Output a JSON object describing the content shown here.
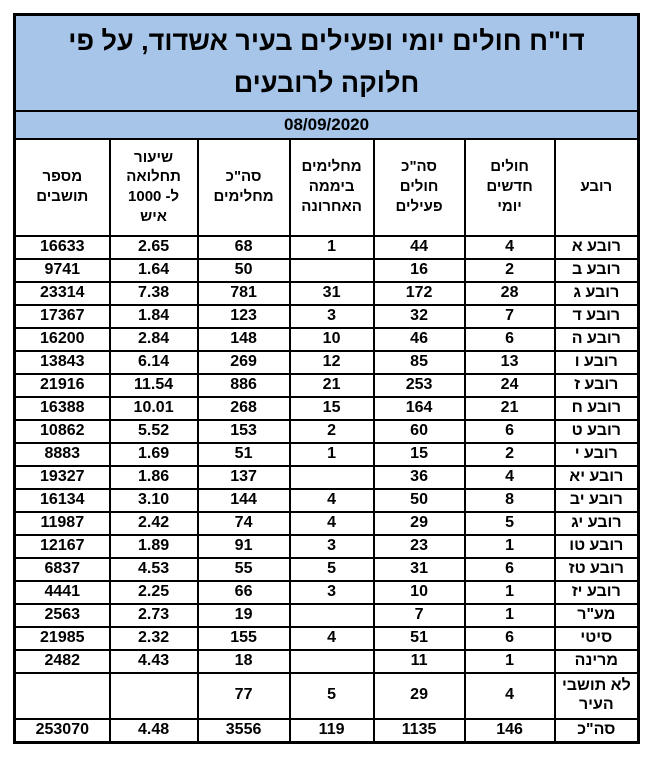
{
  "report": {
    "title": "דו\"ח חולים יומי ופעילים בעיר אשדוד,  על פי\nחלוקה לרובעים",
    "date": "08/09/2020"
  },
  "colors": {
    "header_bg": "#a6c5e8",
    "border": "#000000",
    "row_bg": "#ffffff",
    "text": "#000000"
  },
  "table": {
    "columns": [
      {
        "key": "quarter",
        "label": "רובע"
      },
      {
        "key": "new_daily",
        "label": "חולים\nחדשים\nיומי"
      },
      {
        "key": "active_total",
        "label": "סה\"כ\nחולים\nפעילים"
      },
      {
        "key": "recovered_last_day",
        "label": "מחלימים\nביממה\nהאחרונה"
      },
      {
        "key": "recovered_total",
        "label": "סה\"כ\nמחלימים"
      },
      {
        "key": "rate_per_1000",
        "label": "שיעור\nתחלואה\nל- 1000\nאיש"
      },
      {
        "key": "residents",
        "label": "מספר\nתושבים"
      }
    ],
    "rows": [
      {
        "tall": false,
        "values": {
          "quarter": "רובע א",
          "new_daily": "4",
          "active_total": "44",
          "recovered_last_day": "1",
          "recovered_total": "68",
          "rate_per_1000": "2.65",
          "residents": "16633"
        }
      },
      {
        "tall": false,
        "values": {
          "quarter": "רובע ב",
          "new_daily": "2",
          "active_total": "16",
          "recovered_last_day": "",
          "recovered_total": "50",
          "rate_per_1000": "1.64",
          "residents": "9741"
        }
      },
      {
        "tall": false,
        "values": {
          "quarter": "רובע ג",
          "new_daily": "28",
          "active_total": "172",
          "recovered_last_day": "31",
          "recovered_total": "781",
          "rate_per_1000": "7.38",
          "residents": "23314"
        }
      },
      {
        "tall": false,
        "values": {
          "quarter": "רובע ד",
          "new_daily": "7",
          "active_total": "32",
          "recovered_last_day": "3",
          "recovered_total": "123",
          "rate_per_1000": "1.84",
          "residents": "17367"
        }
      },
      {
        "tall": false,
        "values": {
          "quarter": "רובע ה",
          "new_daily": "6",
          "active_total": "46",
          "recovered_last_day": "10",
          "recovered_total": "148",
          "rate_per_1000": "2.84",
          "residents": "16200"
        }
      },
      {
        "tall": false,
        "values": {
          "quarter": "רובע ו",
          "new_daily": "13",
          "active_total": "85",
          "recovered_last_day": "12",
          "recovered_total": "269",
          "rate_per_1000": "6.14",
          "residents": "13843"
        }
      },
      {
        "tall": false,
        "values": {
          "quarter": "רובע ז",
          "new_daily": "24",
          "active_total": "253",
          "recovered_last_day": "21",
          "recovered_total": "886",
          "rate_per_1000": "11.54",
          "residents": "21916"
        }
      },
      {
        "tall": false,
        "values": {
          "quarter": "רובע ח",
          "new_daily": "21",
          "active_total": "164",
          "recovered_last_day": "15",
          "recovered_total": "268",
          "rate_per_1000": "10.01",
          "residents": "16388"
        }
      },
      {
        "tall": false,
        "values": {
          "quarter": "רובע ט",
          "new_daily": "6",
          "active_total": "60",
          "recovered_last_day": "2",
          "recovered_total": "153",
          "rate_per_1000": "5.52",
          "residents": "10862"
        }
      },
      {
        "tall": false,
        "values": {
          "quarter": "רובע י",
          "new_daily": "2",
          "active_total": "15",
          "recovered_last_day": "1",
          "recovered_total": "51",
          "rate_per_1000": "1.69",
          "residents": "8883"
        }
      },
      {
        "tall": false,
        "values": {
          "quarter": "רובע יא",
          "new_daily": "4",
          "active_total": "36",
          "recovered_last_day": "",
          "recovered_total": "137",
          "rate_per_1000": "1.86",
          "residents": "19327"
        }
      },
      {
        "tall": false,
        "values": {
          "quarter": "רובע יב",
          "new_daily": "8",
          "active_total": "50",
          "recovered_last_day": "4",
          "recovered_total": "144",
          "rate_per_1000": "3.10",
          "residents": "16134"
        }
      },
      {
        "tall": false,
        "values": {
          "quarter": "רובע יג",
          "new_daily": "5",
          "active_total": "29",
          "recovered_last_day": "4",
          "recovered_total": "74",
          "rate_per_1000": "2.42",
          "residents": "11987"
        }
      },
      {
        "tall": false,
        "values": {
          "quarter": "רובע טו",
          "new_daily": "1",
          "active_total": "23",
          "recovered_last_day": "3",
          "recovered_total": "91",
          "rate_per_1000": "1.89",
          "residents": "12167"
        }
      },
      {
        "tall": false,
        "values": {
          "quarter": "רובע טז",
          "new_daily": "6",
          "active_total": "31",
          "recovered_last_day": "5",
          "recovered_total": "55",
          "rate_per_1000": "4.53",
          "residents": "6837"
        }
      },
      {
        "tall": false,
        "values": {
          "quarter": "רובע יז",
          "new_daily": "1",
          "active_total": "10",
          "recovered_last_day": "3",
          "recovered_total": "66",
          "rate_per_1000": "2.25",
          "residents": "4441"
        }
      },
      {
        "tall": false,
        "values": {
          "quarter": "מע\"ר",
          "new_daily": "1",
          "active_total": "7",
          "recovered_last_day": "",
          "recovered_total": "19",
          "rate_per_1000": "2.73",
          "residents": "2563"
        }
      },
      {
        "tall": false,
        "values": {
          "quarter": "סיטי",
          "new_daily": "6",
          "active_total": "51",
          "recovered_last_day": "4",
          "recovered_total": "155",
          "rate_per_1000": "2.32",
          "residents": "21985"
        }
      },
      {
        "tall": false,
        "values": {
          "quarter": "מרינה",
          "new_daily": "1",
          "active_total": "11",
          "recovered_last_day": "",
          "recovered_total": "18",
          "rate_per_1000": "4.43",
          "residents": "2482"
        }
      },
      {
        "tall": true,
        "values": {
          "quarter": "לא תושבי\nהעיר",
          "new_daily": "4",
          "active_total": "29",
          "recovered_last_day": "5",
          "recovered_total": "77",
          "rate_per_1000": "",
          "residents": ""
        }
      },
      {
        "tall": false,
        "values": {
          "quarter": "סה\"כ",
          "new_daily": "146",
          "active_total": "1135",
          "recovered_last_day": "119",
          "recovered_total": "3556",
          "rate_per_1000": "4.48",
          "residents": "253070"
        }
      }
    ]
  }
}
